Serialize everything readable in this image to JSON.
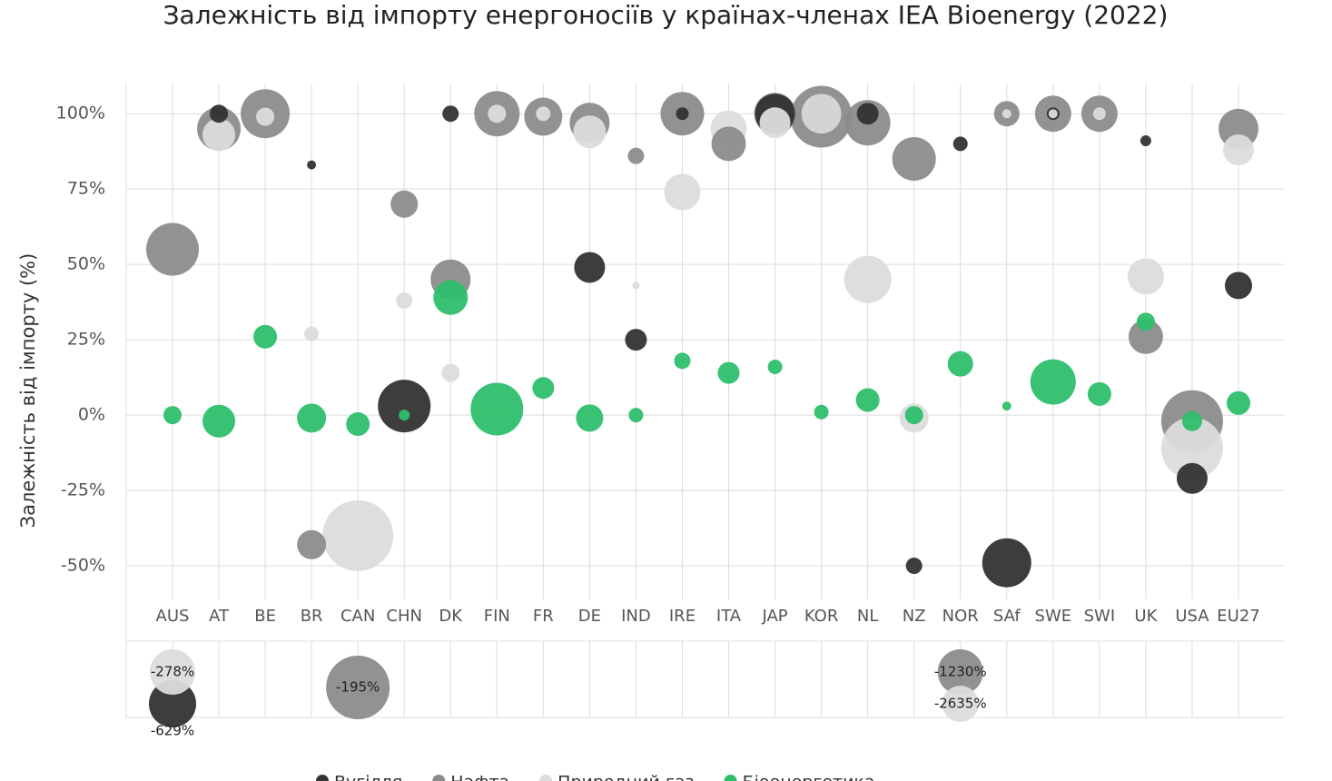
{
  "chart_data": {
    "type": "bubble",
    "title": "Залежність від імпорту енергоносіїв у країнах-членах IEA Bioenergy (2022)",
    "y_label": "Залежність від імпорту (%)",
    "categories": [
      "AUS",
      "AT",
      "BE",
      "BR",
      "CAN",
      "CHN",
      "DK",
      "FIN",
      "FR",
      "DE",
      "IND",
      "IRE",
      "ITA",
      "JAP",
      "KOR",
      "NL",
      "NZ",
      "NOR",
      "SAf",
      "SWE",
      "SWI",
      "UK",
      "USA",
      "EU27"
    ],
    "ylim": [
      -75,
      110
    ],
    "yticks": [
      {
        "value": 100,
        "label": "100%"
      },
      {
        "value": 75,
        "label": "75%"
      },
      {
        "value": 50,
        "label": "50%"
      },
      {
        "value": 25,
        "label": "25%"
      },
      {
        "value": 0,
        "label": "0%"
      },
      {
        "value": -25,
        "label": "-25%"
      },
      {
        "value": -50,
        "label": "-50%"
      }
    ],
    "grid": true,
    "series": [
      {
        "name": "Вугілля",
        "color": "#333333",
        "values": [
          -629,
          100,
          null,
          83,
          null,
          3,
          100,
          null,
          null,
          49,
          25,
          100,
          null,
          100,
          100,
          100,
          -50,
          90,
          -49,
          100,
          null,
          91,
          -21,
          43
        ],
        "sizes": [
          26,
          10,
          null,
          5,
          null,
          29,
          9,
          null,
          null,
          17,
          12,
          7,
          null,
          22,
          22,
          12,
          9,
          8,
          27,
          7,
          null,
          6,
          17,
          15
        ],
        "value_labels": [
          "-629%",
          null,
          null,
          null,
          null,
          null,
          null,
          null,
          null,
          null,
          null,
          null,
          null,
          null,
          null,
          null,
          null,
          null,
          null,
          null,
          null,
          null,
          null,
          null
        ]
      },
      {
        "name": "Нафта",
        "color": "#8c8c8c",
        "values": [
          55,
          95,
          100,
          -43,
          -195,
          70,
          45,
          100,
          99,
          97,
          86,
          100,
          90,
          100,
          99,
          97,
          85,
          -1230,
          100,
          100,
          100,
          26,
          -2,
          95
        ],
        "sizes": [
          29,
          24,
          27,
          16,
          35,
          15,
          22,
          25,
          21,
          22,
          9,
          24,
          19,
          23,
          34,
          25,
          24,
          25,
          14,
          20,
          20,
          19,
          34,
          22
        ],
        "value_labels": [
          null,
          null,
          null,
          null,
          "-195%",
          null,
          null,
          null,
          null,
          null,
          null,
          null,
          null,
          null,
          null,
          null,
          null,
          "-1230%",
          null,
          null,
          null,
          null,
          null,
          null
        ]
      },
      {
        "name": "Природний газ",
        "color": "#dcdcdc",
        "values": [
          -278,
          93,
          99,
          27,
          -40,
          38,
          14,
          100,
          100,
          94,
          43,
          74,
          95,
          97,
          100,
          45,
          -1,
          -2635,
          100,
          100,
          100,
          46,
          -11,
          88
        ],
        "sizes": [
          25,
          18,
          10,
          8,
          39,
          9,
          10,
          10,
          8,
          18,
          4,
          20,
          20,
          17,
          22,
          26,
          16,
          20,
          5,
          5,
          7,
          20,
          34,
          17
        ],
        "value_labels": [
          "-278%",
          null,
          null,
          null,
          null,
          null,
          null,
          null,
          null,
          null,
          null,
          null,
          null,
          null,
          null,
          null,
          null,
          "-2635%",
          null,
          null,
          null,
          null,
          null,
          null
        ]
      },
      {
        "name": "Біоенергетика",
        "color": "#2ebf6b",
        "values": [
          0,
          -2,
          26,
          -1,
          -3,
          0,
          39,
          2,
          9,
          -1,
          0,
          18,
          14,
          16,
          1,
          5,
          0,
          17,
          3,
          11,
          7,
          31,
          -2,
          4
        ],
        "sizes": [
          10,
          18,
          13,
          16,
          13,
          6,
          19,
          29,
          12,
          15,
          8,
          9,
          12,
          8,
          8,
          13,
          10,
          14,
          5,
          25,
          13,
          10,
          11,
          13
        ]
      }
    ]
  }
}
